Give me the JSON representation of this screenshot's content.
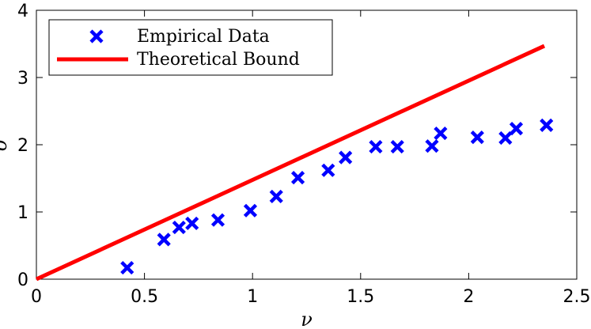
{
  "chart_data": {
    "type": "scatter",
    "xlabel": "ν",
    "ylabel": "σ",
    "xlim": [
      0,
      2.5
    ],
    "ylim": [
      0,
      4
    ],
    "xticks": [
      "0",
      "0.5",
      "1",
      "1.5",
      "2",
      "2.5"
    ],
    "yticks": [
      "0",
      "1",
      "2",
      "3",
      "4"
    ],
    "grid": false,
    "legend_position": "top-left",
    "series": [
      {
        "name": "Empirical Data",
        "kind": "markers",
        "marker": "x",
        "color": "#0000ff",
        "points": [
          [
            0.42,
            0.17
          ],
          [
            0.59,
            0.59
          ],
          [
            0.66,
            0.77
          ],
          [
            0.72,
            0.83
          ],
          [
            0.84,
            0.88
          ],
          [
            0.99,
            1.02
          ],
          [
            1.11,
            1.23
          ],
          [
            1.21,
            1.51
          ],
          [
            1.35,
            1.62
          ],
          [
            1.43,
            1.81
          ],
          [
            1.57,
            1.97
          ],
          [
            1.67,
            1.97
          ],
          [
            1.83,
            1.98
          ],
          [
            1.87,
            2.17
          ],
          [
            2.04,
            2.11
          ],
          [
            2.17,
            2.1
          ],
          [
            2.22,
            2.24
          ],
          [
            2.36,
            2.29
          ]
        ]
      },
      {
        "name": "Theoretical Bound",
        "kind": "line",
        "color": "#ff0000",
        "points": [
          [
            0,
            0
          ],
          [
            2.35,
            3.47
          ]
        ]
      }
    ]
  }
}
